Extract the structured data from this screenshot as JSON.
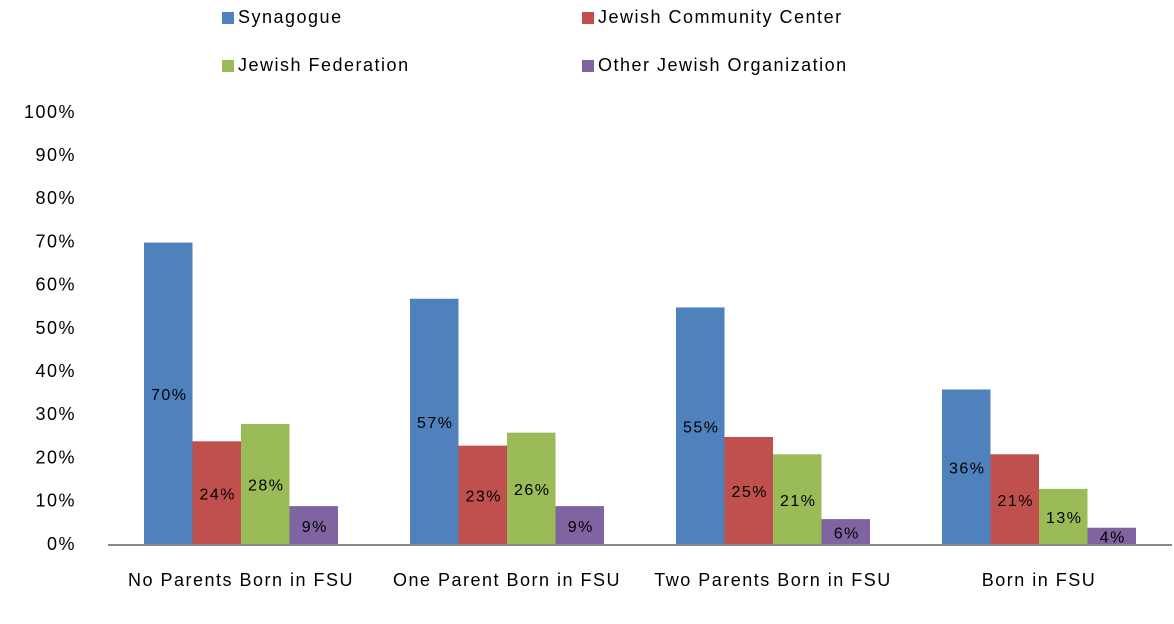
{
  "chart_data": {
    "type": "bar",
    "categories": [
      "No Parents Born in FSU",
      "One Parent Born in FSU",
      "Two Parents Born in FSU",
      "Born in FSU"
    ],
    "series": [
      {
        "name": "Synagogue",
        "color": "#4f81bd",
        "values": [
          70,
          57,
          55,
          36
        ],
        "value_labels": [
          "70%",
          "57%",
          "55%",
          "36%"
        ]
      },
      {
        "name": "Jewish Community Center",
        "color": "#c0504d",
        "values": [
          24,
          23,
          25,
          21
        ],
        "value_labels": [
          "24%",
          "23%",
          "25%",
          "21%"
        ]
      },
      {
        "name": "Jewish Federation",
        "color": "#9bbb59",
        "values": [
          28,
          26,
          21,
          13
        ],
        "value_labels": [
          "28%",
          "26%",
          "21%",
          "13%"
        ]
      },
      {
        "name": "Other Jewish Organization",
        "color": "#8064a2",
        "values": [
          9,
          9,
          6,
          4
        ],
        "value_labels": [
          "9%",
          "9%",
          "6%",
          "4%"
        ]
      }
    ],
    "ylim": [
      0,
      100
    ],
    "yticks": [
      {
        "value": 0,
        "label": "0%"
      },
      {
        "value": 10,
        "label": "10%"
      },
      {
        "value": 20,
        "label": "20%"
      },
      {
        "value": 30,
        "label": "30%"
      },
      {
        "value": 40,
        "label": "40%"
      },
      {
        "value": 50,
        "label": "50%"
      },
      {
        "value": 60,
        "label": "60%"
      },
      {
        "value": 70,
        "label": "70%"
      },
      {
        "value": 80,
        "label": "80%"
      },
      {
        "value": 90,
        "label": "90%"
      },
      {
        "value": 100,
        "label": "100%"
      }
    ],
    "grid": false,
    "legend": "top"
  }
}
